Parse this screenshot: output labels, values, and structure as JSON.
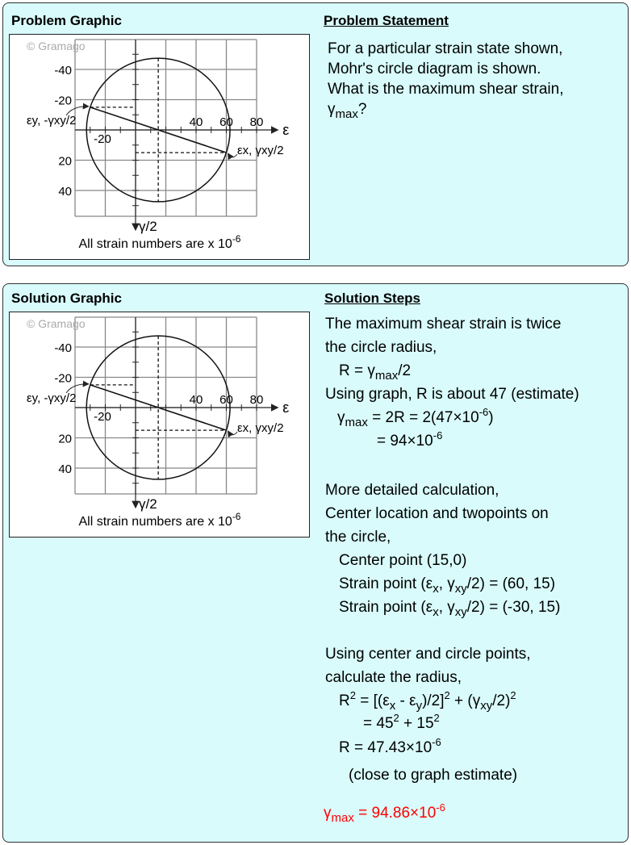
{
  "problem": {
    "graphic_title": "Problem Graphic",
    "statement_title": "Problem Statement",
    "statement_lines": [
      [
        [
          "t",
          "For a particular strain state shown,"
        ]
      ],
      [
        [
          "t",
          "Mohr's circle diagram is shown."
        ]
      ],
      [
        [
          "t",
          "What is the maximum shear strain,"
        ]
      ],
      [
        [
          "t",
          "γ"
        ],
        [
          "sub",
          "max"
        ],
        [
          "t",
          "?"
        ]
      ]
    ]
  },
  "graph": {
    "watermark": "© Gramago",
    "x_axis_label": "ε",
    "y_axis_label": "γ/2",
    "x_ticks": [
      "-20",
      "40",
      "60",
      "80"
    ],
    "y_ticks": [
      "-40",
      "-20",
      "20",
      "40"
    ],
    "point_y_label": "εy, -γxy/2",
    "point_x_label": "εx, γxy/2",
    "caption": "All strain numbers are x 10",
    "caption_exp": "-6",
    "center": [
      15,
      0
    ],
    "point_x": [
      60,
      15
    ],
    "point_y": [
      -30,
      -15
    ],
    "radius": 47.43
  },
  "solution": {
    "graphic_title": "Solution Graphic",
    "steps_title": "Solution Steps",
    "steps": [
      [
        [
          "t",
          "The maximum shear strain is twice"
        ]
      ],
      [
        [
          "t",
          "the circle radius,"
        ]
      ],
      [
        [
          "t",
          "R = γ"
        ],
        [
          "sub",
          "max"
        ],
        [
          "t",
          "/2"
        ]
      ],
      [
        [
          "t",
          "Using graph, R is about 47 (estimate)"
        ]
      ],
      [
        [
          "t",
          "γ"
        ],
        [
          "sub",
          "max"
        ],
        [
          "t",
          " = 2R = 2(47×10"
        ],
        [
          "sup",
          "-6"
        ],
        [
          "t",
          ")"
        ]
      ],
      [
        [
          "t",
          "= 94×10"
        ],
        [
          "sup",
          "-6"
        ]
      ],
      [
        [
          "t",
          "More detailed calculation,"
        ]
      ],
      [
        [
          "t",
          "Center location and twopoints on"
        ]
      ],
      [
        [
          "t",
          "the circle,"
        ]
      ],
      [
        [
          "t",
          "Center point (15,0)"
        ]
      ],
      [
        [
          "t",
          "Strain point (ε"
        ],
        [
          "sub",
          "x"
        ],
        [
          "t",
          ", γ"
        ],
        [
          "sub",
          "xy"
        ],
        [
          "t",
          "/2) = (60, 15)"
        ]
      ],
      [
        [
          "t",
          "Strain point (ε"
        ],
        [
          "sub",
          "x"
        ],
        [
          "t",
          ", γ"
        ],
        [
          "sub",
          "xy"
        ],
        [
          "t",
          "/2) = (-30, 15)"
        ]
      ],
      [
        [
          "t",
          "Using center and circle points,"
        ]
      ],
      [
        [
          "t",
          "calculate the radius,"
        ]
      ],
      [
        [
          "t",
          "R"
        ],
        [
          "sup",
          "2"
        ],
        [
          "t",
          " = [(ε"
        ],
        [
          "sub",
          "x"
        ],
        [
          "t",
          " - ε"
        ],
        [
          "sub",
          "y"
        ],
        [
          "t",
          ")/2]"
        ],
        [
          "sup",
          "2"
        ],
        [
          "t",
          " + (γ"
        ],
        [
          "sub",
          "xy"
        ],
        [
          "t",
          "/2)"
        ],
        [
          "sup",
          "2"
        ]
      ],
      [
        [
          "t",
          "= 45"
        ],
        [
          "sup",
          "2"
        ],
        [
          "t",
          " + 15"
        ],
        [
          "sup",
          "2"
        ]
      ],
      [
        [
          "t",
          "R = 47.43×10"
        ],
        [
          "sup",
          "-6"
        ]
      ],
      [
        [
          "t",
          "(close to graph estimate)"
        ]
      ],
      [
        [
          "t",
          "γ"
        ],
        [
          "sub",
          "max"
        ],
        [
          "t",
          " = 94.86×10"
        ],
        [
          "sup",
          "-6"
        ]
      ]
    ],
    "answer_color": "#ff0000"
  }
}
